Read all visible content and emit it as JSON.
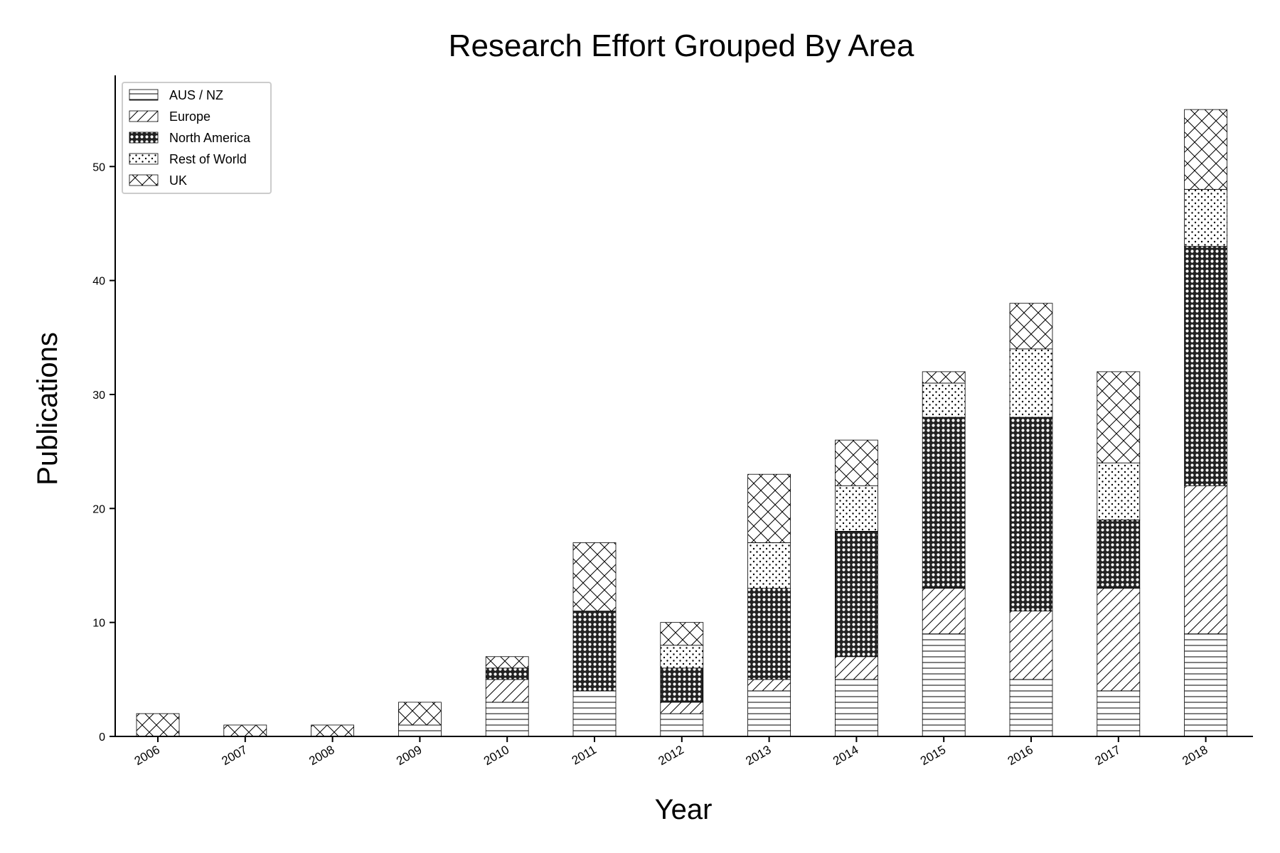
{
  "chart_data": {
    "type": "bar",
    "stacked": true,
    "title": "Research Effort Grouped By Area",
    "xlabel": "Year",
    "ylabel": "Publications",
    "ylim": [
      0,
      58
    ],
    "yticks": [
      0,
      10,
      20,
      30,
      40,
      50
    ],
    "grid": false,
    "legend_position": "top-left",
    "categories": [
      "2006",
      "2007",
      "2008",
      "2009",
      "2010",
      "2011",
      "2012",
      "2013",
      "2014",
      "2015",
      "2016",
      "2017",
      "2018"
    ],
    "series": [
      {
        "name": "AUS / NZ",
        "pattern": "horizontal-lines",
        "values": [
          0,
          0,
          0,
          1,
          3,
          4,
          2,
          4,
          5,
          9,
          5,
          4,
          9
        ]
      },
      {
        "name": "Europe",
        "pattern": "diagonal-lines",
        "values": [
          0,
          0,
          0,
          0,
          2,
          0,
          1,
          1,
          2,
          4,
          6,
          9,
          13
        ]
      },
      {
        "name": "North America",
        "pattern": "dense-circles",
        "values": [
          0,
          0,
          0,
          0,
          1,
          7,
          3,
          8,
          11,
          15,
          17,
          6,
          21
        ]
      },
      {
        "name": "Rest of World",
        "pattern": "dots",
        "values": [
          0,
          0,
          0,
          0,
          0,
          0,
          2,
          4,
          4,
          3,
          6,
          5,
          5
        ]
      },
      {
        "name": "UK",
        "pattern": "crosshatch",
        "values": [
          2,
          1,
          1,
          2,
          1,
          6,
          2,
          6,
          4,
          1,
          4,
          8,
          7
        ]
      }
    ]
  }
}
